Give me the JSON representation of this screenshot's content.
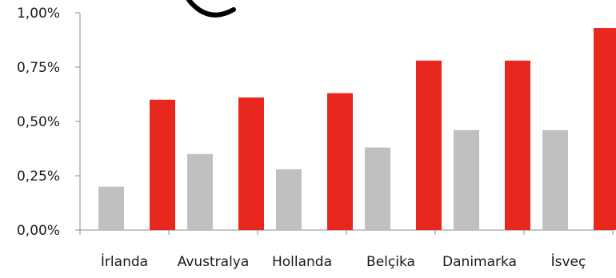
{
  "chart_data": {
    "type": "bar",
    "title": "",
    "xlabel": "",
    "ylabel": "",
    "categories": [
      "İrlanda",
      "Avustralya",
      "Hollanda",
      "Belçika",
      "Danimarka",
      "İsveç"
    ],
    "series": [
      {
        "color": "#c0c0c0",
        "values": [
          0.2,
          0.35,
          0.28,
          0.38,
          0.46,
          0.46
        ]
      },
      {
        "color": "#e8281e",
        "values": [
          0.6,
          0.61,
          0.63,
          0.78,
          0.78,
          0.93
        ]
      }
    ],
    "ylim": [
      0,
      1
    ],
    "yticks": [
      "0,00%",
      "0,25%",
      "0,50%",
      "0,75%",
      "1,00%"
    ],
    "grid": false,
    "legend": "none"
  }
}
